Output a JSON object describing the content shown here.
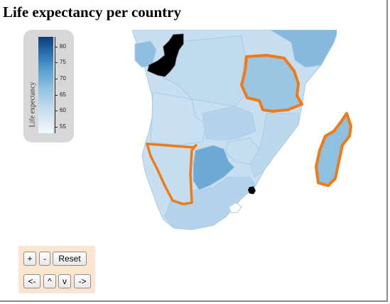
{
  "page": {
    "title": "Life expectancy per country"
  },
  "legend": {
    "title": "Life expectancy",
    "ticks": [
      {
        "value": 80,
        "label": "80"
      },
      {
        "value": 75,
        "label": "75"
      },
      {
        "value": 70,
        "label": "70"
      },
      {
        "value": 65,
        "label": "65"
      },
      {
        "value": 60,
        "label": "60"
      },
      {
        "value": 55,
        "label": "55"
      }
    ],
    "min": 53,
    "max": 83,
    "colors": [
      "#f2f8fd",
      "#c6ddef",
      "#94c4e1",
      "#5aa1d0",
      "#2c73b2",
      "#0b3d78"
    ]
  },
  "map": {
    "highlight_color": "#f07a16",
    "no_data_color": "#000000",
    "regions": [
      {
        "name": "congo",
        "fill": "#000000",
        "highlighted": false
      },
      {
        "name": "tanzania",
        "fill": "#9ac6e1",
        "highlighted": true
      },
      {
        "name": "namibia",
        "fill": "#c4def0",
        "highlighted": true
      },
      {
        "name": "madagascar",
        "fill": "#8ec0df",
        "highlighted": true
      },
      {
        "name": "botswana",
        "fill": "#6ea9d4",
        "highlighted": false
      },
      {
        "name": "swaziland",
        "fill": "#000000",
        "highlighted": false
      }
    ]
  },
  "controls": {
    "zoom_in": "+",
    "zoom_out": "-",
    "reset": "Reset",
    "pan_left": "<-",
    "pan_up": "^",
    "pan_down": "v",
    "pan_right": "->"
  }
}
